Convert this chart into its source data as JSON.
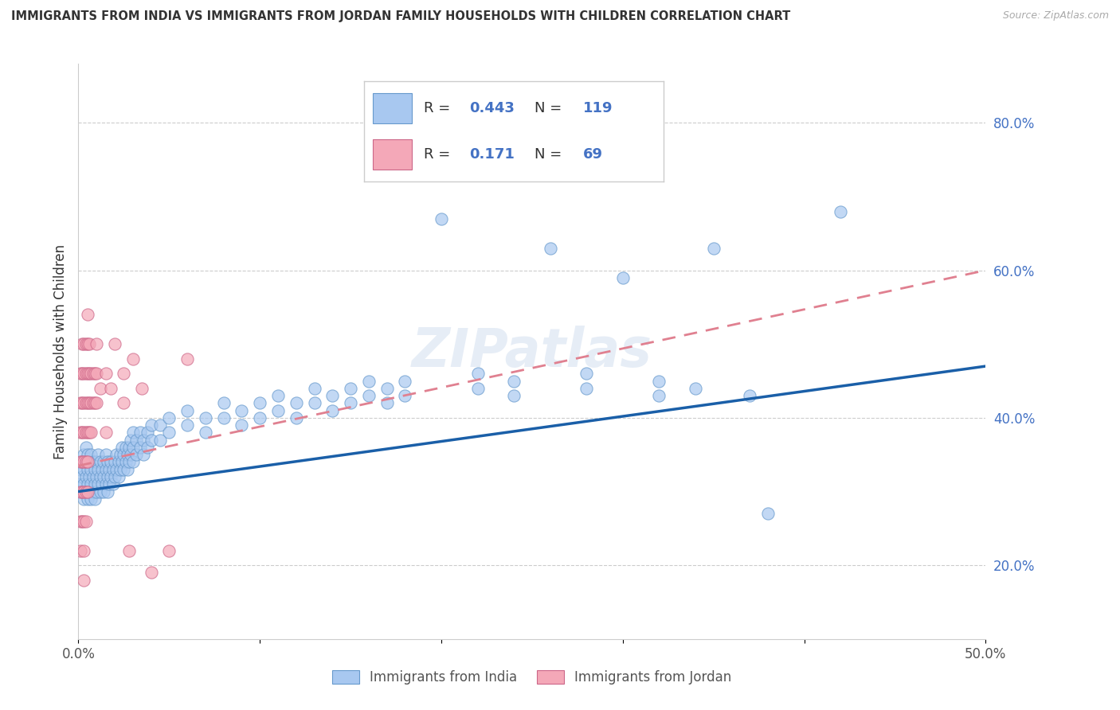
{
  "title": "IMMIGRANTS FROM INDIA VS IMMIGRANTS FROM JORDAN FAMILY HOUSEHOLDS WITH CHILDREN CORRELATION CHART",
  "source": "Source: ZipAtlas.com",
  "ylabel": "Family Households with Children",
  "xlim": [
    0.0,
    0.5
  ],
  "ylim": [
    0.1,
    0.88
  ],
  "india_color": "#a8c8f0",
  "india_edge_color": "#6699cc",
  "jordan_color": "#f4a8b8",
  "jordan_edge_color": "#cc6688",
  "india_line_color": "#1a5fa8",
  "jordan_line_color": "#e08090",
  "india_R": 0.443,
  "india_N": 119,
  "jordan_R": 0.171,
  "jordan_N": 69,
  "watermark": "ZIPatlas",
  "india_scatter": [
    [
      0.001,
      0.31
    ],
    [
      0.001,
      0.33
    ],
    [
      0.002,
      0.3
    ],
    [
      0.002,
      0.32
    ],
    [
      0.002,
      0.34
    ],
    [
      0.003,
      0.29
    ],
    [
      0.003,
      0.31
    ],
    [
      0.003,
      0.33
    ],
    [
      0.003,
      0.35
    ],
    [
      0.004,
      0.3
    ],
    [
      0.004,
      0.32
    ],
    [
      0.004,
      0.34
    ],
    [
      0.004,
      0.36
    ],
    [
      0.005,
      0.29
    ],
    [
      0.005,
      0.31
    ],
    [
      0.005,
      0.33
    ],
    [
      0.005,
      0.35
    ],
    [
      0.006,
      0.3
    ],
    [
      0.006,
      0.32
    ],
    [
      0.006,
      0.34
    ],
    [
      0.007,
      0.29
    ],
    [
      0.007,
      0.31
    ],
    [
      0.007,
      0.33
    ],
    [
      0.007,
      0.35
    ],
    [
      0.008,
      0.3
    ],
    [
      0.008,
      0.32
    ],
    [
      0.008,
      0.34
    ],
    [
      0.009,
      0.29
    ],
    [
      0.009,
      0.31
    ],
    [
      0.009,
      0.33
    ],
    [
      0.01,
      0.3
    ],
    [
      0.01,
      0.32
    ],
    [
      0.01,
      0.34
    ],
    [
      0.011,
      0.31
    ],
    [
      0.011,
      0.33
    ],
    [
      0.011,
      0.35
    ],
    [
      0.012,
      0.3
    ],
    [
      0.012,
      0.32
    ],
    [
      0.012,
      0.34
    ],
    [
      0.013,
      0.31
    ],
    [
      0.013,
      0.33
    ],
    [
      0.014,
      0.3
    ],
    [
      0.014,
      0.32
    ],
    [
      0.014,
      0.34
    ],
    [
      0.015,
      0.31
    ],
    [
      0.015,
      0.33
    ],
    [
      0.015,
      0.35
    ],
    [
      0.016,
      0.3
    ],
    [
      0.016,
      0.32
    ],
    [
      0.016,
      0.34
    ],
    [
      0.017,
      0.31
    ],
    [
      0.017,
      0.33
    ],
    [
      0.018,
      0.32
    ],
    [
      0.018,
      0.34
    ],
    [
      0.019,
      0.31
    ],
    [
      0.019,
      0.33
    ],
    [
      0.02,
      0.32
    ],
    [
      0.02,
      0.34
    ],
    [
      0.021,
      0.33
    ],
    [
      0.021,
      0.35
    ],
    [
      0.022,
      0.32
    ],
    [
      0.022,
      0.34
    ],
    [
      0.023,
      0.33
    ],
    [
      0.023,
      0.35
    ],
    [
      0.024,
      0.34
    ],
    [
      0.024,
      0.36
    ],
    [
      0.025,
      0.33
    ],
    [
      0.025,
      0.35
    ],
    [
      0.026,
      0.34
    ],
    [
      0.026,
      0.36
    ],
    [
      0.027,
      0.33
    ],
    [
      0.027,
      0.35
    ],
    [
      0.028,
      0.34
    ],
    [
      0.028,
      0.36
    ],
    [
      0.029,
      0.35
    ],
    [
      0.029,
      0.37
    ],
    [
      0.03,
      0.34
    ],
    [
      0.03,
      0.36
    ],
    [
      0.03,
      0.38
    ],
    [
      0.032,
      0.35
    ],
    [
      0.032,
      0.37
    ],
    [
      0.034,
      0.36
    ],
    [
      0.034,
      0.38
    ],
    [
      0.036,
      0.35
    ],
    [
      0.036,
      0.37
    ],
    [
      0.038,
      0.36
    ],
    [
      0.038,
      0.38
    ],
    [
      0.04,
      0.37
    ],
    [
      0.04,
      0.39
    ],
    [
      0.045,
      0.37
    ],
    [
      0.045,
      0.39
    ],
    [
      0.05,
      0.38
    ],
    [
      0.05,
      0.4
    ],
    [
      0.06,
      0.39
    ],
    [
      0.06,
      0.41
    ],
    [
      0.07,
      0.38
    ],
    [
      0.07,
      0.4
    ],
    [
      0.08,
      0.4
    ],
    [
      0.08,
      0.42
    ],
    [
      0.09,
      0.39
    ],
    [
      0.09,
      0.41
    ],
    [
      0.1,
      0.4
    ],
    [
      0.1,
      0.42
    ],
    [
      0.11,
      0.41
    ],
    [
      0.11,
      0.43
    ],
    [
      0.12,
      0.4
    ],
    [
      0.12,
      0.42
    ],
    [
      0.13,
      0.42
    ],
    [
      0.13,
      0.44
    ],
    [
      0.14,
      0.41
    ],
    [
      0.14,
      0.43
    ],
    [
      0.15,
      0.42
    ],
    [
      0.15,
      0.44
    ],
    [
      0.16,
      0.43
    ],
    [
      0.16,
      0.45
    ],
    [
      0.17,
      0.42
    ],
    [
      0.17,
      0.44
    ],
    [
      0.18,
      0.43
    ],
    [
      0.18,
      0.45
    ],
    [
      0.2,
      0.67
    ],
    [
      0.22,
      0.44
    ],
    [
      0.22,
      0.46
    ],
    [
      0.24,
      0.43
    ],
    [
      0.24,
      0.45
    ],
    [
      0.26,
      0.63
    ],
    [
      0.28,
      0.44
    ],
    [
      0.28,
      0.46
    ],
    [
      0.3,
      0.59
    ],
    [
      0.32,
      0.43
    ],
    [
      0.32,
      0.45
    ],
    [
      0.34,
      0.44
    ],
    [
      0.35,
      0.63
    ],
    [
      0.37,
      0.43
    ],
    [
      0.38,
      0.27
    ],
    [
      0.42,
      0.68
    ]
  ],
  "jordan_scatter": [
    [
      0.001,
      0.46
    ],
    [
      0.001,
      0.42
    ],
    [
      0.001,
      0.38
    ],
    [
      0.001,
      0.34
    ],
    [
      0.001,
      0.3
    ],
    [
      0.001,
      0.26
    ],
    [
      0.001,
      0.22
    ],
    [
      0.002,
      0.5
    ],
    [
      0.002,
      0.46
    ],
    [
      0.002,
      0.42
    ],
    [
      0.002,
      0.38
    ],
    [
      0.002,
      0.34
    ],
    [
      0.002,
      0.3
    ],
    [
      0.002,
      0.26
    ],
    [
      0.003,
      0.5
    ],
    [
      0.003,
      0.46
    ],
    [
      0.003,
      0.42
    ],
    [
      0.003,
      0.38
    ],
    [
      0.003,
      0.34
    ],
    [
      0.003,
      0.3
    ],
    [
      0.003,
      0.26
    ],
    [
      0.003,
      0.22
    ],
    [
      0.003,
      0.18
    ],
    [
      0.004,
      0.5
    ],
    [
      0.004,
      0.46
    ],
    [
      0.004,
      0.42
    ],
    [
      0.004,
      0.38
    ],
    [
      0.004,
      0.34
    ],
    [
      0.004,
      0.3
    ],
    [
      0.004,
      0.26
    ],
    [
      0.005,
      0.54
    ],
    [
      0.005,
      0.5
    ],
    [
      0.005,
      0.46
    ],
    [
      0.005,
      0.42
    ],
    [
      0.005,
      0.38
    ],
    [
      0.005,
      0.34
    ],
    [
      0.005,
      0.3
    ],
    [
      0.006,
      0.5
    ],
    [
      0.006,
      0.46
    ],
    [
      0.006,
      0.42
    ],
    [
      0.006,
      0.38
    ],
    [
      0.007,
      0.46
    ],
    [
      0.007,
      0.42
    ],
    [
      0.007,
      0.38
    ],
    [
      0.008,
      0.46
    ],
    [
      0.008,
      0.42
    ],
    [
      0.009,
      0.46
    ],
    [
      0.009,
      0.42
    ],
    [
      0.01,
      0.46
    ],
    [
      0.01,
      0.42
    ],
    [
      0.012,
      0.44
    ],
    [
      0.015,
      0.46
    ],
    [
      0.018,
      0.44
    ],
    [
      0.02,
      0.5
    ],
    [
      0.025,
      0.46
    ],
    [
      0.028,
      0.22
    ],
    [
      0.03,
      0.48
    ],
    [
      0.035,
      0.44
    ],
    [
      0.04,
      0.19
    ],
    [
      0.05,
      0.22
    ],
    [
      0.06,
      0.48
    ],
    [
      0.025,
      0.42
    ],
    [
      0.01,
      0.5
    ],
    [
      0.015,
      0.38
    ]
  ]
}
